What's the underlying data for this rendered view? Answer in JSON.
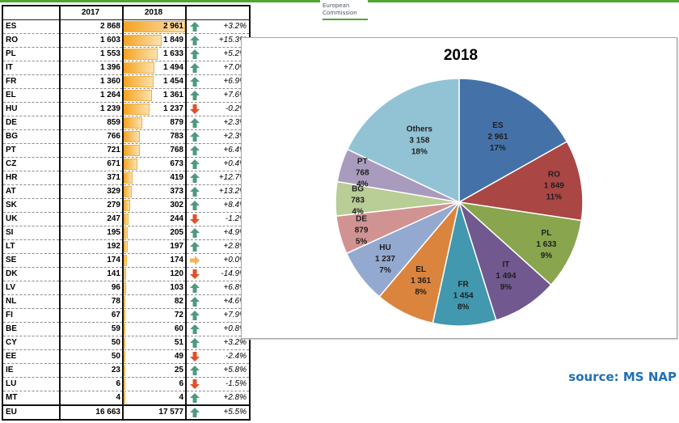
{
  "header": {
    "logo_line1": "European",
    "logo_line2": "Commission",
    "brand_color": "#4ea72e"
  },
  "table": {
    "columns": [
      "",
      "2017",
      "2018",
      ""
    ],
    "rows": [
      {
        "country": "ES",
        "y2017": "2 868",
        "y2018": "2 961",
        "v2018": 2961,
        "trend": "up",
        "change": "+3.2%"
      },
      {
        "country": "RO",
        "y2017": "1 603",
        "y2018": "1 849",
        "v2018": 1849,
        "trend": "up",
        "change": "+15.3%"
      },
      {
        "country": "PL",
        "y2017": "1 553",
        "y2018": "1 633",
        "v2018": 1633,
        "trend": "up",
        "change": "+5.2%"
      },
      {
        "country": "IT",
        "y2017": "1 396",
        "y2018": "1 494",
        "v2018": 1494,
        "trend": "up",
        "change": "+7.0%"
      },
      {
        "country": "FR",
        "y2017": "1 360",
        "y2018": "1 454",
        "v2018": 1454,
        "trend": "up",
        "change": "+6.9%"
      },
      {
        "country": "EL",
        "y2017": "1 264",
        "y2018": "1 361",
        "v2018": 1361,
        "trend": "up",
        "change": "+7.6%"
      },
      {
        "country": "HU",
        "y2017": "1 239",
        "y2018": "1 237",
        "v2018": 1237,
        "trend": "down",
        "change": "-0.2%"
      },
      {
        "country": "DE",
        "y2017": "859",
        "y2018": "879",
        "v2018": 879,
        "trend": "up",
        "change": "+2.3%"
      },
      {
        "country": "BG",
        "y2017": "766",
        "y2018": "783",
        "v2018": 783,
        "trend": "up",
        "change": "+2.3%"
      },
      {
        "country": "PT",
        "y2017": "721",
        "y2018": "768",
        "v2018": 768,
        "trend": "up",
        "change": "+6.4%"
      },
      {
        "country": "CZ",
        "y2017": "671",
        "y2018": "673",
        "v2018": 673,
        "trend": "up",
        "change": "+0.4%"
      },
      {
        "country": "HR",
        "y2017": "371",
        "y2018": "419",
        "v2018": 419,
        "trend": "up",
        "change": "+12.7%"
      },
      {
        "country": "AT",
        "y2017": "329",
        "y2018": "373",
        "v2018": 373,
        "trend": "up",
        "change": "+13.2%"
      },
      {
        "country": "SK",
        "y2017": "279",
        "y2018": "302",
        "v2018": 302,
        "trend": "up",
        "change": "+8.4%"
      },
      {
        "country": "UK",
        "y2017": "247",
        "y2018": "244",
        "v2018": 244,
        "trend": "down",
        "change": "-1.2%"
      },
      {
        "country": "SI",
        "y2017": "195",
        "y2018": "205",
        "v2018": 205,
        "trend": "up",
        "change": "+4.9%"
      },
      {
        "country": "LT",
        "y2017": "192",
        "y2018": "197",
        "v2018": 197,
        "trend": "up",
        "change": "+2.8%"
      },
      {
        "country": "SE",
        "y2017": "174",
        "y2018": "174",
        "v2018": 174,
        "trend": "flat",
        "change": "+0.0%"
      },
      {
        "country": "DK",
        "y2017": "141",
        "y2018": "120",
        "v2018": 120,
        "trend": "down",
        "change": "-14.9%"
      },
      {
        "country": "LV",
        "y2017": "96",
        "y2018": "103",
        "v2018": 103,
        "trend": "up",
        "change": "+6.8%"
      },
      {
        "country": "NL",
        "y2017": "78",
        "y2018": "82",
        "v2018": 82,
        "trend": "up",
        "change": "+4.6%"
      },
      {
        "country": "FI",
        "y2017": "67",
        "y2018": "72",
        "v2018": 72,
        "trend": "up",
        "change": "+7.9%"
      },
      {
        "country": "BE",
        "y2017": "59",
        "y2018": "60",
        "v2018": 60,
        "trend": "up",
        "change": "+0.8%"
      },
      {
        "country": "CY",
        "y2017": "50",
        "y2018": "51",
        "v2018": 51,
        "trend": "up",
        "change": "+3.2%"
      },
      {
        "country": "EE",
        "y2017": "50",
        "y2018": "49",
        "v2018": 49,
        "trend": "down",
        "change": "-2.4%"
      },
      {
        "country": "IE",
        "y2017": "23",
        "y2018": "25",
        "v2018": 25,
        "trend": "up",
        "change": "+5.8%"
      },
      {
        "country": "LU",
        "y2017": "6",
        "y2018": "6",
        "v2018": 6,
        "trend": "down",
        "change": "-1.5%"
      },
      {
        "country": "MT",
        "y2017": "4",
        "y2018": "4",
        "v2018": 4,
        "trend": "up",
        "change": "+2.8%"
      }
    ],
    "total": {
      "country": "EU",
      "y2017": "16 663",
      "y2018": "17 577",
      "trend": "up",
      "change": "+5.5%"
    },
    "bar_max": 2961,
    "trend_colors": {
      "up": "#4f9a7e",
      "down": "#e0502a",
      "flat": "#f2b35a"
    }
  },
  "chart_data": {
    "type": "pie",
    "title": "2018",
    "start_angle_deg": 0,
    "direction": "clockwise",
    "slices": [
      {
        "label": "ES",
        "value": 2961,
        "value_text": "2 961",
        "percent_text": "17%",
        "color": "#4472a8"
      },
      {
        "label": "RO",
        "value": 1849,
        "value_text": "1 849",
        "percent_text": "11%",
        "color": "#aa4644"
      },
      {
        "label": "PL",
        "value": 1633,
        "value_text": "1 633",
        "percent_text": "9%",
        "color": "#89a54e"
      },
      {
        "label": "IT",
        "value": 1494,
        "value_text": "1 494",
        "percent_text": "9%",
        "color": "#71588f"
      },
      {
        "label": "FR",
        "value": 1454,
        "value_text": "1 454",
        "percent_text": "8%",
        "color": "#4198af"
      },
      {
        "label": "EL",
        "value": 1361,
        "value_text": "1 361",
        "percent_text": "8%",
        "color": "#db843d"
      },
      {
        "label": "HU",
        "value": 1237,
        "value_text": "1 237",
        "percent_text": "7%",
        "color": "#93a9cf"
      },
      {
        "label": "DE",
        "value": 879,
        "value_text": "879",
        "percent_text": "5%",
        "color": "#d19392"
      },
      {
        "label": "BG",
        "value": 783,
        "value_text": "783",
        "percent_text": "4%",
        "color": "#b9cd96"
      },
      {
        "label": "PT",
        "value": 768,
        "value_text": "768",
        "percent_text": "4%",
        "color": "#a99bbd"
      },
      {
        "label": "Others",
        "value": 3158,
        "value_text": "3 158",
        "percent_text": "18%",
        "color": "#92c3d5"
      }
    ]
  },
  "footer": {
    "source": "source: MS NAP",
    "source_color": "#1f6fb5"
  }
}
